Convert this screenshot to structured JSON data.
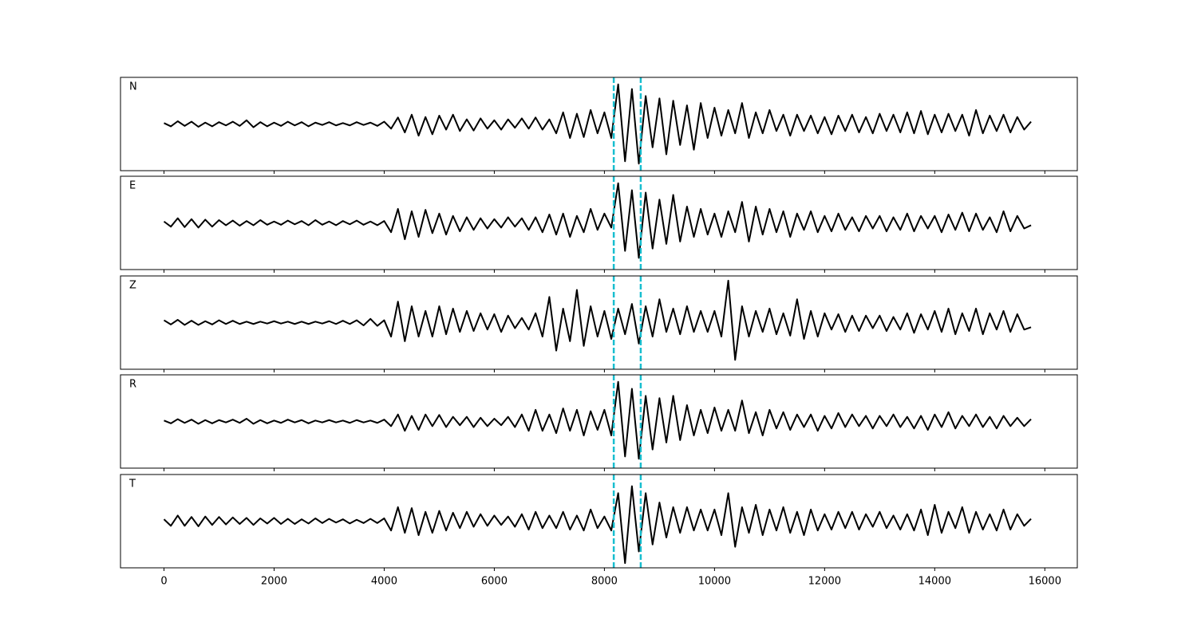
{
  "chart_data": {
    "type": "line",
    "x": [
      0,
      125,
      250,
      375,
      500,
      625,
      750,
      875,
      1000,
      1125,
      1250,
      1375,
      1500,
      1625,
      1750,
      1875,
      2000,
      2125,
      2250,
      2375,
      2500,
      2625,
      2750,
      2875,
      3000,
      3125,
      3250,
      3375,
      3500,
      3625,
      3750,
      3875,
      4000,
      4125,
      4250,
      4375,
      4500,
      4625,
      4750,
      4875,
      5000,
      5125,
      5250,
      5375,
      5500,
      5625,
      5750,
      5875,
      6000,
      6125,
      6250,
      6375,
      6500,
      6625,
      6750,
      6875,
      7000,
      7125,
      7250,
      7375,
      7500,
      7625,
      7750,
      7875,
      8000,
      8125,
      8250,
      8375,
      8500,
      8625,
      8750,
      8875,
      9000,
      9125,
      9250,
      9375,
      9500,
      9625,
      9750,
      9875,
      10000,
      10125,
      10250,
      10375,
      10500,
      10625,
      10750,
      10875,
      11000,
      11125,
      11250,
      11375,
      11500,
      11625,
      11750,
      11875,
      12000,
      12125,
      12250,
      12375,
      12500,
      12625,
      12750,
      12875,
      13000,
      13125,
      13250,
      13375,
      13500,
      13625,
      13750,
      13875,
      14000,
      14125,
      14250,
      14375,
      14500,
      14625,
      14750,
      14875,
      15000,
      15125,
      15250,
      15375,
      15500,
      15625,
      15750
    ],
    "series": [
      {
        "name": "N",
        "color": "#000000",
        "values": [
          0.02,
          -0.05,
          0.06,
          -0.04,
          0.05,
          -0.06,
          0.03,
          -0.05,
          0.04,
          -0.03,
          0.05,
          -0.04,
          0.08,
          -0.07,
          0.04,
          -0.05,
          0.03,
          -0.04,
          0.05,
          -0.03,
          0.04,
          -0.05,
          0.03,
          -0.02,
          0.04,
          -0.03,
          0.02,
          -0.03,
          0.04,
          -0.02,
          0.03,
          -0.04,
          0.05,
          -0.1,
          0.14,
          -0.18,
          0.2,
          -0.25,
          0.15,
          -0.22,
          0.18,
          -0.12,
          0.2,
          -0.15,
          0.1,
          -0.14,
          0.12,
          -0.1,
          0.08,
          -0.12,
          0.1,
          -0.08,
          0.12,
          -0.1,
          0.14,
          -0.12,
          0.1,
          -0.2,
          0.25,
          -0.3,
          0.22,
          -0.28,
          0.3,
          -0.2,
          0.25,
          -0.3,
          0.85,
          -0.8,
          0.75,
          -0.85,
          0.6,
          -0.5,
          0.55,
          -0.65,
          0.5,
          -0.45,
          0.4,
          -0.55,
          0.45,
          -0.3,
          0.35,
          -0.25,
          0.3,
          -0.2,
          0.45,
          -0.3,
          0.25,
          -0.2,
          0.3,
          -0.15,
          0.2,
          -0.25,
          0.2,
          -0.15,
          0.18,
          -0.2,
          0.15,
          -0.22,
          0.18,
          -0.15,
          0.2,
          -0.18,
          0.15,
          -0.2,
          0.22,
          -0.15,
          0.2,
          -0.18,
          0.25,
          -0.2,
          0.28,
          -0.22,
          0.2,
          -0.18,
          0.22,
          -0.15,
          0.2,
          -0.25,
          0.3,
          -0.2,
          0.18,
          -0.15,
          0.2,
          -0.18,
          0.15,
          -0.12,
          0.05
        ]
      },
      {
        "name": "E",
        "color": "#000000",
        "values": [
          0.03,
          -0.08,
          0.1,
          -0.09,
          0.08,
          -0.1,
          0.07,
          -0.08,
          0.06,
          -0.05,
          0.05,
          -0.06,
          0.04,
          -0.05,
          0.06,
          -0.04,
          0.03,
          -0.04,
          0.05,
          -0.03,
          0.04,
          -0.05,
          0.06,
          -0.04,
          0.03,
          -0.05,
          0.04,
          -0.03,
          0.05,
          -0.04,
          0.03,
          -0.05,
          0.04,
          -0.2,
          0.3,
          -0.35,
          0.25,
          -0.3,
          0.28,
          -0.22,
          0.2,
          -0.25,
          0.15,
          -0.18,
          0.12,
          -0.15,
          0.1,
          -0.12,
          0.08,
          -0.1,
          0.12,
          -0.08,
          0.1,
          -0.15,
          0.12,
          -0.2,
          0.18,
          -0.25,
          0.2,
          -0.3,
          0.15,
          -0.2,
          0.3,
          -0.15,
          0.2,
          -0.1,
          0.85,
          -0.6,
          0.7,
          -0.75,
          0.65,
          -0.55,
          0.5,
          -0.45,
          0.6,
          -0.4,
          0.35,
          -0.3,
          0.3,
          -0.25,
          0.2,
          -0.3,
          0.25,
          -0.2,
          0.45,
          -0.4,
          0.35,
          -0.25,
          0.3,
          -0.2,
          0.25,
          -0.3,
          0.2,
          -0.15,
          0.25,
          -0.2,
          0.15,
          -0.18,
          0.2,
          -0.15,
          0.12,
          -0.18,
          0.15,
          -0.12,
          0.15,
          -0.18,
          0.12,
          -0.15,
          0.2,
          -0.18,
          0.15,
          -0.12,
          0.15,
          -0.2,
          0.18,
          -0.15,
          0.22,
          -0.18,
          0.2,
          -0.15,
          0.12,
          -0.2,
          0.25,
          -0.18,
          0.15,
          -0.12,
          -0.05
        ]
      },
      {
        "name": "Z",
        "color": "#000000",
        "values": [
          0.05,
          -0.04,
          0.06,
          -0.05,
          0.04,
          -0.05,
          0.03,
          -0.04,
          0.05,
          -0.03,
          0.04,
          -0.03,
          0.02,
          -0.03,
          0.02,
          -0.02,
          0.03,
          -0.02,
          0.02,
          -0.03,
          0.02,
          -0.03,
          0.02,
          -0.02,
          0.03,
          -0.03,
          0.04,
          -0.03,
          0.05,
          -0.06,
          0.08,
          -0.07,
          0.05,
          -0.3,
          0.45,
          -0.4,
          0.35,
          -0.3,
          0.25,
          -0.3,
          0.35,
          -0.25,
          0.3,
          -0.2,
          0.25,
          -0.18,
          0.2,
          -0.15,
          0.18,
          -0.2,
          0.15,
          -0.12,
          0.1,
          -0.15,
          0.2,
          -0.3,
          0.55,
          -0.6,
          0.3,
          -0.4,
          0.7,
          -0.5,
          0.35,
          -0.3,
          0.25,
          -0.35,
          0.3,
          -0.25,
          0.4,
          -0.45,
          0.35,
          -0.3,
          0.5,
          -0.2,
          0.3,
          -0.25,
          0.35,
          -0.2,
          0.25,
          -0.2,
          0.25,
          -0.3,
          0.9,
          -0.8,
          0.35,
          -0.3,
          0.25,
          -0.2,
          0.3,
          -0.25,
          0.2,
          -0.28,
          0.5,
          -0.35,
          0.25,
          -0.3,
          0.2,
          -0.15,
          0.18,
          -0.2,
          0.15,
          -0.18,
          0.15,
          -0.12,
          0.15,
          -0.18,
          0.12,
          -0.15,
          0.2,
          -0.22,
          0.18,
          -0.15,
          0.25,
          -0.2,
          0.3,
          -0.25,
          0.2,
          -0.18,
          0.3,
          -0.25,
          0.2,
          -0.15,
          0.25,
          -0.2,
          0.18,
          -0.15,
          -0.1
        ]
      },
      {
        "name": "R",
        "color": "#000000",
        "values": [
          0.02,
          -0.04,
          0.05,
          -0.03,
          0.04,
          -0.05,
          0.03,
          -0.04,
          0.03,
          -0.02,
          0.04,
          -0.03,
          0.06,
          -0.05,
          0.03,
          -0.04,
          0.02,
          -0.03,
          0.04,
          -0.02,
          0.03,
          -0.04,
          0.02,
          -0.02,
          0.03,
          -0.02,
          0.02,
          -0.03,
          0.03,
          -0.02,
          0.02,
          -0.03,
          0.04,
          -0.1,
          0.15,
          -0.2,
          0.12,
          -0.18,
          0.15,
          -0.1,
          0.14,
          -0.12,
          0.1,
          -0.08,
          0.1,
          -0.12,
          0.08,
          -0.1,
          0.06,
          -0.08,
          0.1,
          -0.12,
          0.15,
          -0.2,
          0.25,
          -0.2,
          0.15,
          -0.25,
          0.28,
          -0.2,
          0.25,
          -0.3,
          0.22,
          -0.18,
          0.25,
          -0.3,
          0.85,
          -0.75,
          0.7,
          -0.8,
          0.55,
          -0.6,
          0.5,
          -0.45,
          0.55,
          -0.4,
          0.35,
          -0.3,
          0.25,
          -0.25,
          0.3,
          -0.2,
          0.25,
          -0.2,
          0.45,
          -0.25,
          0.2,
          -0.3,
          0.25,
          -0.15,
          0.2,
          -0.18,
          0.15,
          -0.12,
          0.15,
          -0.2,
          0.12,
          -0.15,
          0.18,
          -0.12,
          0.15,
          -0.1,
          0.12,
          -0.15,
          0.12,
          -0.1,
          0.15,
          -0.12,
          0.1,
          -0.15,
          0.12,
          -0.18,
          0.15,
          -0.12,
          0.2,
          -0.15,
          0.12,
          -0.1,
          0.15,
          -0.12,
          0.1,
          -0.15,
          0.12,
          -0.1,
          0.08,
          -0.1,
          0.05
        ]
      },
      {
        "name": "T",
        "color": "#000000",
        "values": [
          0.04,
          -0.1,
          0.12,
          -0.1,
          0.09,
          -0.11,
          0.1,
          -0.08,
          0.09,
          -0.07,
          0.08,
          -0.06,
          0.07,
          -0.08,
          0.06,
          -0.05,
          0.07,
          -0.06,
          0.05,
          -0.06,
          0.04,
          -0.05,
          0.06,
          -0.04,
          0.05,
          -0.03,
          0.04,
          -0.05,
          0.03,
          -0.04,
          0.05,
          -0.04,
          0.06,
          -0.2,
          0.3,
          -0.25,
          0.28,
          -0.3,
          0.2,
          -0.25,
          0.22,
          -0.2,
          0.18,
          -0.15,
          0.2,
          -0.12,
          0.15,
          -0.1,
          0.12,
          -0.08,
          0.1,
          -0.12,
          0.15,
          -0.18,
          0.2,
          -0.15,
          0.12,
          -0.15,
          0.2,
          -0.18,
          0.12,
          -0.2,
          0.25,
          -0.15,
          0.1,
          -0.2,
          0.6,
          -0.9,
          0.75,
          -0.65,
          0.6,
          -0.5,
          0.4,
          -0.35,
          0.3,
          -0.25,
          0.3,
          -0.2,
          0.25,
          -0.2,
          0.25,
          -0.3,
          0.6,
          -0.55,
          0.3,
          -0.25,
          0.35,
          -0.3,
          0.25,
          -0.2,
          0.3,
          -0.25,
          0.2,
          -0.3,
          0.25,
          -0.2,
          0.15,
          -0.18,
          0.2,
          -0.15,
          0.2,
          -0.18,
          0.15,
          -0.12,
          0.2,
          -0.15,
          0.12,
          -0.18,
          0.15,
          -0.2,
          0.25,
          -0.3,
          0.35,
          -0.25,
          0.2,
          -0.15,
          0.3,
          -0.25,
          0.2,
          -0.18,
          0.15,
          -0.2,
          0.25,
          -0.18,
          0.15,
          -0.1,
          0.05
        ]
      }
    ],
    "xlim": [
      -790,
      16590
    ],
    "xticks": [
      0,
      2000,
      4000,
      6000,
      8000,
      10000,
      12000,
      14000,
      16000
    ],
    "ylim": [
      -1,
      1
    ],
    "grid": false,
    "vlines": [
      8170,
      8660
    ],
    "vline_color": "#17becf"
  }
}
